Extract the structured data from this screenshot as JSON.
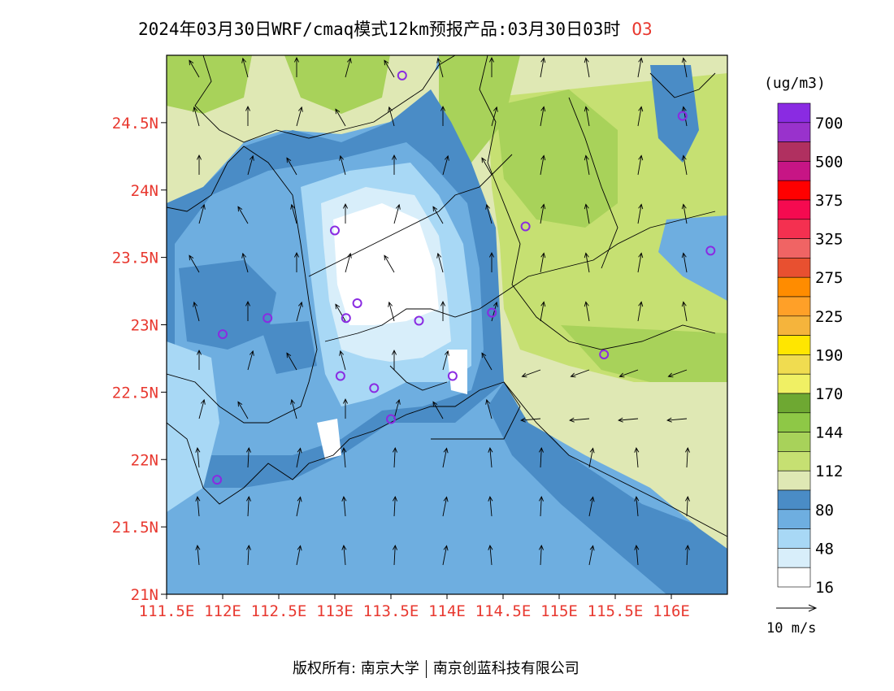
{
  "header": {
    "title": "2024年03月30日WRF/cmaq模式12km预报产品:03月30日03时",
    "species": "O3"
  },
  "map": {
    "lat_ticks": [
      "24.5N",
      "24N",
      "23.5N",
      "23N",
      "22.5N",
      "22N",
      "21.5N",
      "21N"
    ],
    "lon_ticks": [
      "111.5E",
      "112E",
      "112.5E",
      "113E",
      "113.5E",
      "114E",
      "114.5E",
      "115E",
      "115.5E",
      "116E"
    ],
    "lat_range": [
      21.0,
      25.0
    ],
    "lon_range": [
      111.5,
      116.5
    ],
    "tick_color": "#e8382f"
  },
  "legend": {
    "unit": "(ug/m3)",
    "labels": [
      "700",
      "500",
      "375",
      "325",
      "275",
      "225",
      "190",
      "170",
      "144",
      "112",
      "80",
      "48",
      "16"
    ],
    "colors": [
      "#8a2be2",
      "#9932cc",
      "#b03060",
      "#c71585",
      "#ff0000",
      "#f50a50",
      "#f43050",
      "#f06464",
      "#e85030",
      "#ff8c00",
      "#ffa028",
      "#f5b43c",
      "#ffe600",
      "#f0dc50",
      "#f0f064",
      "#6ea832",
      "#8ec846",
      "#a8d25a",
      "#c6e072",
      "#dfe8b4",
      "#4a8cc6",
      "#6eaee0",
      "#a8d8f5",
      "#d8eefa",
      "#ffffff"
    ]
  },
  "wind_reference": {
    "label": "10 m/s"
  },
  "stations": [
    {
      "lon": 113.6,
      "lat": 24.85
    },
    {
      "lon": 116.1,
      "lat": 24.55
    },
    {
      "lon": 113.0,
      "lat": 23.7
    },
    {
      "lon": 114.7,
      "lat": 23.73
    },
    {
      "lon": 116.35,
      "lat": 23.55
    },
    {
      "lon": 113.2,
      "lat": 23.16
    },
    {
      "lon": 113.1,
      "lat": 23.05
    },
    {
      "lon": 112.4,
      "lat": 23.05
    },
    {
      "lon": 113.75,
      "lat": 23.03
    },
    {
      "lon": 114.4,
      "lat": 23.09
    },
    {
      "lon": 112.0,
      "lat": 22.93
    },
    {
      "lon": 115.4,
      "lat": 22.78
    },
    {
      "lon": 113.05,
      "lat": 22.62
    },
    {
      "lon": 114.05,
      "lat": 22.62
    },
    {
      "lon": 113.35,
      "lat": 22.53
    },
    {
      "lon": 113.5,
      "lat": 22.3
    },
    {
      "lon": 111.95,
      "lat": 21.85
    }
  ],
  "footer": {
    "copyright": "版权所有: 南京大学",
    "company": "南京创蓝科技有限公司"
  }
}
